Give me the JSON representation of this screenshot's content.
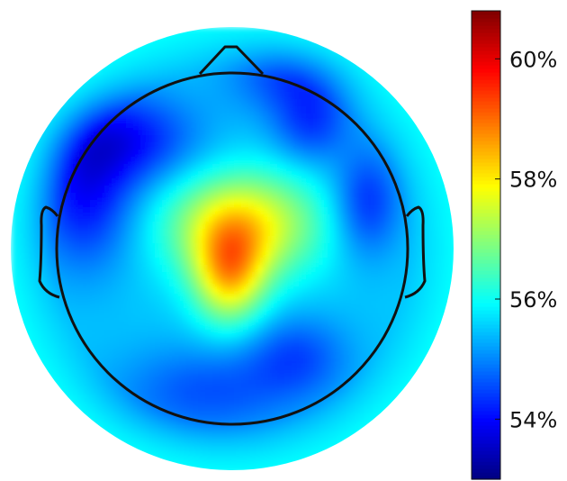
{
  "chart_data": {
    "type": "heatmap",
    "subtype": "eeg-topographic-map",
    "title": "",
    "xlabel": "",
    "ylabel": "",
    "colormap": "jet",
    "colorbar": {
      "position": "right",
      "range": [
        53.0,
        60.8
      ],
      "unit": "%",
      "ticks": [
        {
          "value": 54,
          "label": "54%"
        },
        {
          "value": 56,
          "label": "56%"
        },
        {
          "value": 58,
          "label": "58%"
        },
        {
          "value": 60,
          "label": "60%"
        }
      ]
    },
    "background_value": 55.5,
    "regions": [
      {
        "name": "central",
        "value": 57.9
      },
      {
        "name": "left-frontal",
        "value": 54.1
      },
      {
        "name": "right-frontal",
        "value": 54.5
      },
      {
        "name": "right-temporal",
        "value": 54.3
      },
      {
        "name": "posterior",
        "value": 54.6
      },
      {
        "name": "periphery",
        "value": 56.2
      }
    ]
  }
}
